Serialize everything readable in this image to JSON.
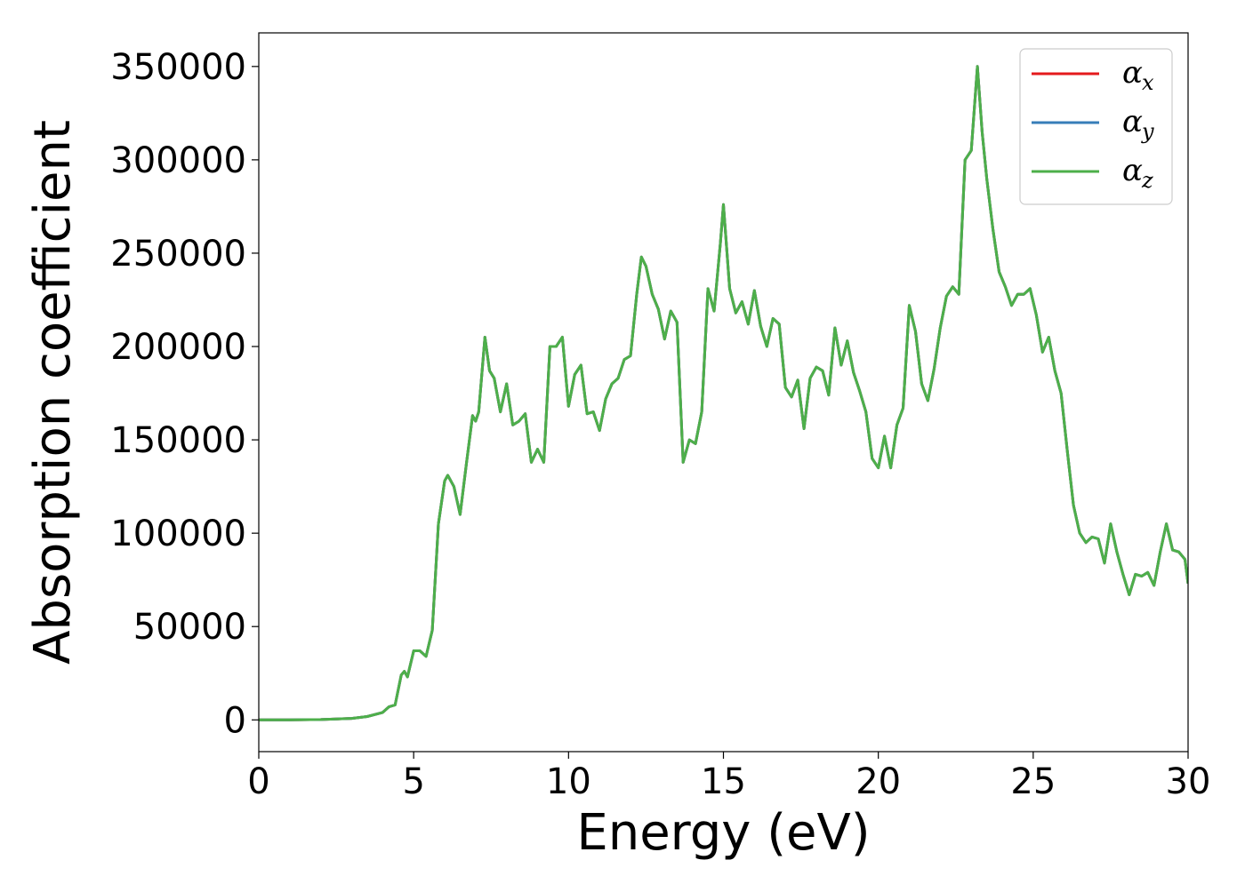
{
  "chart_data": {
    "type": "line",
    "title": "",
    "xlabel": "Energy (eV)",
    "ylabel": "Absorption coefficient",
    "xlim": [
      0,
      30
    ],
    "ylim": [
      -17000,
      368000
    ],
    "x_ticks": [
      0,
      5,
      10,
      15,
      20,
      25,
      30
    ],
    "x_tick_labels": [
      "0",
      "5",
      "10",
      "15",
      "20",
      "25",
      "30"
    ],
    "y_ticks": [
      0,
      50000,
      100000,
      150000,
      200000,
      250000,
      300000,
      350000
    ],
    "y_tick_labels": [
      "0",
      "50000",
      "100000",
      "150000",
      "200000",
      "250000",
      "300000",
      "350000"
    ],
    "grid": false,
    "legend_position": "top-right",
    "colors": {
      "alpha_x": "#e41a1c",
      "alpha_y": "#377eb8",
      "alpha_z": "#4daf4a"
    },
    "legend": [
      {
        "symbol": "α",
        "subscript": "x",
        "color": "#e41a1c"
      },
      {
        "symbol": "α",
        "subscript": "y",
        "color": "#377eb8"
      },
      {
        "symbol": "α",
        "subscript": "z",
        "color": "#4daf4a"
      }
    ],
    "x": [
      0,
      1,
      2,
      3,
      3.5,
      4.0,
      4.2,
      4.4,
      4.6,
      4.7,
      4.8,
      5.0,
      5.2,
      5.4,
      5.6,
      5.8,
      6.0,
      6.1,
      6.3,
      6.5,
      6.7,
      6.9,
      7.0,
      7.1,
      7.3,
      7.45,
      7.6,
      7.8,
      8.0,
      8.2,
      8.4,
      8.6,
      8.8,
      9.0,
      9.2,
      9.4,
      9.6,
      9.8,
      10.0,
      10.2,
      10.4,
      10.6,
      10.8,
      11.0,
      11.2,
      11.4,
      11.6,
      11.8,
      12.0,
      12.2,
      12.35,
      12.5,
      12.7,
      12.9,
      13.1,
      13.3,
      13.5,
      13.7,
      13.9,
      14.1,
      14.3,
      14.5,
      14.7,
      14.9,
      15.0,
      15.2,
      15.4,
      15.6,
      15.8,
      16.0,
      16.2,
      16.4,
      16.6,
      16.8,
      17.0,
      17.2,
      17.4,
      17.6,
      17.8,
      18.0,
      18.2,
      18.4,
      18.6,
      18.8,
      19.0,
      19.2,
      19.4,
      19.6,
      19.8,
      20.0,
      20.2,
      20.4,
      20.6,
      20.8,
      21.0,
      21.2,
      21.4,
      21.6,
      21.8,
      22.0,
      22.2,
      22.4,
      22.6,
      22.8,
      23.0,
      23.2,
      23.35,
      23.5,
      23.7,
      23.9,
      24.1,
      24.3,
      24.5,
      24.7,
      24.9,
      25.1,
      25.3,
      25.5,
      25.7,
      25.9,
      26.1,
      26.3,
      26.5,
      26.7,
      26.9,
      27.1,
      27.3,
      27.5,
      27.7,
      27.9,
      28.1,
      28.3,
      28.5,
      28.7,
      28.9,
      29.1,
      29.3,
      29.5,
      29.7,
      29.9,
      30.0
    ],
    "series": [
      {
        "name": "α_x",
        "color": "#e41a1c",
        "values": [
          0,
          0,
          200,
          800,
          1800,
          4000,
          7000,
          8000,
          24000,
          26000,
          23000,
          37000,
          37000,
          34000,
          48000,
          105000,
          128000,
          131000,
          125000,
          110000,
          137000,
          163000,
          160000,
          165000,
          205000,
          187000,
          183000,
          165000,
          180000,
          158000,
          160000,
          164000,
          138000,
          145000,
          138000,
          200000,
          200000,
          205000,
          168000,
          185000,
          190000,
          164000,
          165000,
          155000,
          172000,
          180000,
          183000,
          193000,
          195000,
          228000,
          248000,
          243000,
          228000,
          220000,
          204000,
          219000,
          213000,
          138000,
          150000,
          148000,
          165000,
          231000,
          219000,
          255000,
          276000,
          231000,
          218000,
          224000,
          212000,
          230000,
          211000,
          200000,
          215000,
          212000,
          178000,
          173000,
          182000,
          156000,
          183000,
          189000,
          187000,
          174000,
          210000,
          190000,
          203000,
          186000,
          176000,
          165000,
          140000,
          135000,
          152000,
          135000,
          158000,
          167000,
          222000,
          208000,
          180000,
          171000,
          188000,
          210000,
          227000,
          232000,
          228000,
          300000,
          305000,
          350000,
          315000,
          290000,
          263000,
          240000,
          232000,
          222000,
          228000,
          228000,
          231000,
          217000,
          197000,
          205000,
          187000,
          175000,
          144000,
          115000,
          100000,
          95000,
          98000,
          97000,
          84000,
          105000,
          90000,
          78000,
          67000,
          78000,
          77000,
          79000,
          72000,
          90000,
          105000,
          91000,
          90000,
          86000,
          73000
        ]
      },
      {
        "name": "α_y",
        "color": "#377eb8",
        "values": [
          0,
          0,
          200,
          800,
          1800,
          4000,
          7000,
          8000,
          24000,
          26000,
          23000,
          37000,
          37000,
          34000,
          48000,
          105000,
          128000,
          131000,
          125000,
          110000,
          137000,
          163000,
          160000,
          165000,
          205000,
          187000,
          183000,
          165000,
          180000,
          158000,
          160000,
          164000,
          138000,
          145000,
          138000,
          200000,
          200000,
          205000,
          168000,
          185000,
          190000,
          164000,
          165000,
          155000,
          172000,
          180000,
          183000,
          193000,
          195000,
          228000,
          248000,
          243000,
          228000,
          220000,
          204000,
          219000,
          213000,
          138000,
          150000,
          148000,
          165000,
          231000,
          219000,
          255000,
          276000,
          231000,
          218000,
          224000,
          212000,
          230000,
          211000,
          200000,
          215000,
          212000,
          178000,
          173000,
          182000,
          156000,
          183000,
          189000,
          187000,
          174000,
          210000,
          190000,
          203000,
          186000,
          176000,
          165000,
          140000,
          135000,
          152000,
          135000,
          158000,
          167000,
          222000,
          208000,
          180000,
          171000,
          188000,
          210000,
          227000,
          232000,
          228000,
          300000,
          305000,
          350000,
          315000,
          290000,
          263000,
          240000,
          232000,
          222000,
          228000,
          228000,
          231000,
          217000,
          197000,
          205000,
          187000,
          175000,
          144000,
          115000,
          100000,
          95000,
          98000,
          97000,
          84000,
          105000,
          90000,
          78000,
          67000,
          78000,
          77000,
          79000,
          72000,
          90000,
          105000,
          91000,
          90000,
          86000,
          73000
        ]
      },
      {
        "name": "α_z",
        "color": "#4daf4a",
        "values": [
          0,
          0,
          200,
          800,
          1800,
          4000,
          7000,
          8000,
          24000,
          26000,
          23000,
          37000,
          37000,
          34000,
          48000,
          105000,
          128000,
          131000,
          125000,
          110000,
          137000,
          163000,
          160000,
          165000,
          205000,
          187000,
          183000,
          165000,
          180000,
          158000,
          160000,
          164000,
          138000,
          145000,
          138000,
          200000,
          200000,
          205000,
          168000,
          185000,
          190000,
          164000,
          165000,
          155000,
          172000,
          180000,
          183000,
          193000,
          195000,
          228000,
          248000,
          243000,
          228000,
          220000,
          204000,
          219000,
          213000,
          138000,
          150000,
          148000,
          165000,
          231000,
          219000,
          255000,
          276000,
          231000,
          218000,
          224000,
          212000,
          230000,
          211000,
          200000,
          215000,
          212000,
          178000,
          173000,
          182000,
          156000,
          183000,
          189000,
          187000,
          174000,
          210000,
          190000,
          203000,
          186000,
          176000,
          165000,
          140000,
          135000,
          152000,
          135000,
          158000,
          167000,
          222000,
          208000,
          180000,
          171000,
          188000,
          210000,
          227000,
          232000,
          228000,
          300000,
          305000,
          350000,
          315000,
          290000,
          263000,
          240000,
          232000,
          222000,
          228000,
          228000,
          231000,
          217000,
          197000,
          205000,
          187000,
          175000,
          144000,
          115000,
          100000,
          95000,
          98000,
          97000,
          84000,
          105000,
          90000,
          78000,
          67000,
          78000,
          77000,
          79000,
          72000,
          90000,
          105000,
          91000,
          90000,
          86000,
          73000
        ]
      }
    ]
  }
}
